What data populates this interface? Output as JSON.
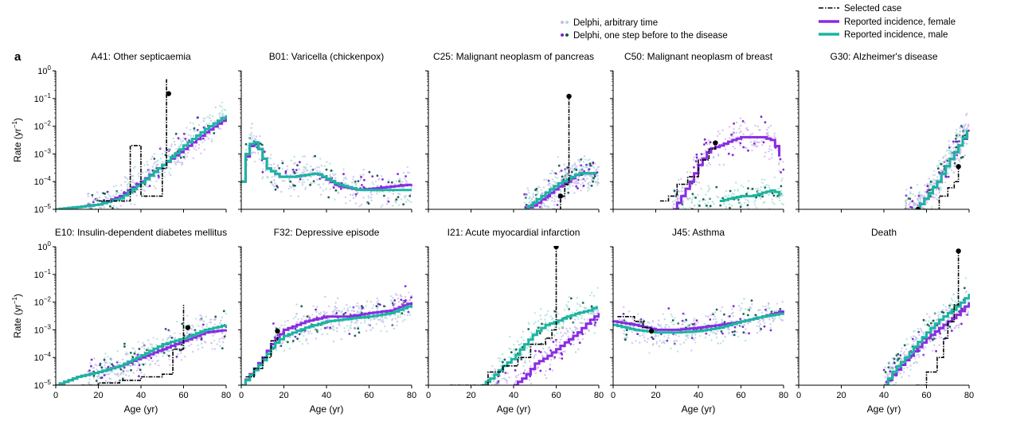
{
  "figure_label": "a",
  "legend": {
    "arbitrary": "Delphi, arbitrary time",
    "onestep": "Delphi, one step before to the disease",
    "selected": "Selected case",
    "female": "Reported incidence, female",
    "male": "Reported incidence, male"
  },
  "colors": {
    "female": "#8a2be2",
    "male": "#1ab5a0",
    "female_light": "#cdb6ee",
    "male_light": "#a8e0d8",
    "female_dark": "#7a1fd6",
    "male_dark": "#0e5c4a",
    "selected": "#000000"
  },
  "axis": {
    "xlabel": "Age (yr)",
    "ylabel_main": "Rate (yr",
    "ylabel_sup": "−1",
    "ylabel_close": ")",
    "x_ticks": [
      "0",
      "20",
      "40",
      "60",
      "80"
    ],
    "y_ticks": [
      {
        "base": "10",
        "exp": "0",
        "value": 1
      },
      {
        "base": "10",
        "exp": "−1",
        "value": 0.1
      },
      {
        "base": "10",
        "exp": "−2",
        "value": 0.01
      },
      {
        "base": "10",
        "exp": "−3",
        "value": 0.001
      },
      {
        "base": "10",
        "exp": "−4",
        "value": 0.0001
      },
      {
        "base": "10",
        "exp": "−5",
        "value": 1e-05
      }
    ]
  },
  "chart_data": [
    {
      "type": "line",
      "title": "A41: Other septicaemia",
      "xlim": [
        0,
        80
      ],
      "ylim": [
        1e-05,
        1
      ],
      "yscale": "log",
      "series": [
        {
          "name": "Reported incidence, female",
          "x": [
            0,
            10,
            20,
            30,
            40,
            50,
            60,
            70,
            80
          ],
          "y": [
            1e-05,
            1.2e-05,
            1.5e-05,
            3e-05,
            0.0001,
            0.0004,
            0.0015,
            0.006,
            0.02
          ]
        },
        {
          "name": "Reported incidence, male",
          "x": [
            0,
            10,
            20,
            30,
            40,
            50,
            60,
            70,
            80
          ],
          "y": [
            1e-05,
            1.2e-05,
            1.5e-05,
            2.5e-05,
            9e-05,
            0.0004,
            0.002,
            0.008,
            0.025
          ]
        },
        {
          "name": "Selected case",
          "x": [
            20,
            35,
            35,
            40,
            45,
            50,
            52,
            52
          ],
          "y": [
            2e-05,
            2e-05,
            0.002,
            3e-05,
            3e-05,
            0.0003,
            0.003,
            0.5
          ]
        }
      ],
      "selected_markers": [
        {
          "x": 53,
          "y": 0.15
        }
      ],
      "scatter": {
        "start_age": 15,
        "peak": 0.1
      }
    },
    {
      "type": "line",
      "title": "B01: Varicella (chickenpox)",
      "xlim": [
        0,
        80
      ],
      "ylim": [
        1e-05,
        1
      ],
      "yscale": "log",
      "series": [
        {
          "name": "Reported incidence, female",
          "x": [
            0,
            2,
            5,
            8,
            12,
            18,
            25,
            35,
            45,
            55,
            65,
            80
          ],
          "y": [
            0.0001,
            0.0008,
            0.003,
            0.0015,
            0.0003,
            0.00015,
            0.00015,
            0.0002,
            7e-05,
            5e-05,
            6e-05,
            8e-05
          ]
        },
        {
          "name": "Reported incidence, male",
          "x": [
            0,
            2,
            5,
            8,
            12,
            18,
            25,
            35,
            45,
            55,
            65,
            80
          ],
          "y": [
            0.0001,
            0.001,
            0.0035,
            0.0015,
            0.0003,
            0.00015,
            0.00015,
            0.0002,
            8e-05,
            5e-05,
            5e-05,
            5e-05
          ]
        }
      ],
      "selected_markers": [],
      "scatter": {
        "start_age": 2,
        "peak": 0.01
      }
    },
    {
      "type": "line",
      "title": "C25: Malignant neoplasm of pancreas",
      "xlim": [
        0,
        80
      ],
      "ylim": [
        1e-05,
        1
      ],
      "yscale": "log",
      "series": [
        {
          "name": "Reported incidence, female",
          "x": [
            45,
            50,
            55,
            60,
            65,
            70,
            75,
            80
          ],
          "y": [
            1e-05,
            1.5e-05,
            3e-05,
            6e-05,
            0.0001,
            0.0002,
            0.0002,
            0.0002
          ]
        },
        {
          "name": "Reported incidence, male",
          "x": [
            45,
            50,
            55,
            60,
            65,
            70,
            75,
            80
          ],
          "y": [
            1e-05,
            2e-05,
            4e-05,
            8e-05,
            0.00012,
            0.0002,
            0.0002,
            0.0002
          ]
        },
        {
          "name": "Selected case",
          "x": [
            58,
            62,
            64,
            66,
            66
          ],
          "y": [
            1e-05,
            3e-05,
            8e-05,
            0.0005,
            0.15
          ]
        }
      ],
      "selected_markers": [
        {
          "x": 66,
          "y": 0.12
        },
        {
          "x": 62,
          "y": 3e-05
        }
      ],
      "scatter": {
        "start_age": 45,
        "peak": 0.01
      }
    },
    {
      "type": "line",
      "title": "C50: Malignant neoplasm of breast",
      "xlim": [
        0,
        80
      ],
      "ylim": [
        1e-05,
        1
      ],
      "yscale": "log",
      "series": [
        {
          "name": "Reported incidence, female",
          "x": [
            28,
            32,
            36,
            40,
            45,
            50,
            55,
            60,
            65,
            70,
            75,
            78
          ],
          "y": [
            1e-05,
            3e-05,
            0.0001,
            0.0004,
            0.0015,
            0.002,
            0.003,
            0.004,
            0.004,
            0.004,
            0.003,
            0.0008
          ]
        },
        {
          "name": "Reported incidence, male",
          "x": [
            50,
            55,
            60,
            65,
            70,
            75,
            78
          ],
          "y": [
            2e-05,
            2.5e-05,
            3e-05,
            3e-05,
            4e-05,
            5e-05,
            3e-05
          ]
        },
        {
          "name": "Selected case",
          "x": [
            22,
            26,
            30,
            35,
            40,
            45,
            48
          ],
          "y": [
            2e-05,
            3e-05,
            8e-05,
            0.00015,
            0.0006,
            0.0015,
            0.0025
          ]
        }
      ],
      "selected_markers": [
        {
          "x": 48,
          "y": 0.0025
        }
      ],
      "scatter": {
        "start_age": 28,
        "peak": 0.1
      }
    },
    {
      "type": "line",
      "title": "G30: Alzheimer's disease",
      "xlim": [
        0,
        80
      ],
      "ylim": [
        1e-05,
        1
      ],
      "yscale": "log",
      "series": [
        {
          "name": "Reported incidence, female",
          "x": [
            55,
            60,
            65,
            70,
            75,
            80
          ],
          "y": [
            1e-05,
            3e-05,
            0.0001,
            0.0005,
            0.002,
            0.008
          ]
        },
        {
          "name": "Reported incidence, male",
          "x": [
            55,
            60,
            65,
            70,
            75,
            80
          ],
          "y": [
            1e-05,
            3e-05,
            0.0001,
            0.0005,
            0.002,
            0.01
          ]
        },
        {
          "name": "Selected case",
          "x": [
            58,
            63,
            66,
            70,
            73,
            75
          ],
          "y": [
            1e-05,
            1e-05,
            3e-05,
            6e-05,
            0.0001,
            0.0003
          ]
        }
      ],
      "selected_markers": [
        {
          "x": 75,
          "y": 0.00035
        },
        {
          "x": 56,
          "y": 1e-05
        }
      ],
      "scatter": {
        "start_age": 50,
        "peak": 0.1
      }
    },
    {
      "type": "line",
      "title": "E10: Insulin-dependent diabetes mellitus",
      "xlim": [
        0,
        80
      ],
      "ylim": [
        1e-05,
        1
      ],
      "yscale": "log",
      "series": [
        {
          "name": "Reported incidence, female",
          "x": [
            0,
            10,
            20,
            30,
            40,
            50,
            60,
            70,
            80
          ],
          "y": [
            1e-05,
            2e-05,
            3e-05,
            5e-05,
            0.0001,
            0.0002,
            0.0004,
            0.0008,
            0.001
          ]
        },
        {
          "name": "Reported incidence, male",
          "x": [
            0,
            10,
            20,
            30,
            40,
            50,
            60,
            70,
            80
          ],
          "y": [
            1e-05,
            2e-05,
            3e-05,
            5e-05,
            0.00012,
            0.0003,
            0.0005,
            0.001,
            0.0015
          ]
        },
        {
          "name": "Selected case",
          "x": [
            12,
            20,
            30,
            40,
            50,
            55,
            60,
            60
          ],
          "y": [
            1e-05,
            1.2e-05,
            1.5e-05,
            2e-05,
            2.5e-05,
            0.0002,
            0.0005,
            0.008
          ]
        }
      ],
      "selected_markers": [
        {
          "x": 62,
          "y": 0.0012
        }
      ],
      "scatter": {
        "start_age": 15,
        "peak": 0.1
      }
    },
    {
      "type": "line",
      "title": "F32: Depressive episode",
      "xlim": [
        0,
        80
      ],
      "ylim": [
        1e-05,
        1
      ],
      "yscale": "log",
      "series": [
        {
          "name": "Reported incidence, female",
          "x": [
            0,
            10,
            15,
            20,
            30,
            40,
            50,
            60,
            70,
            80
          ],
          "y": [
            1e-05,
            0.0001,
            0.0004,
            0.001,
            0.002,
            0.003,
            0.003,
            0.004,
            0.005,
            0.01
          ]
        },
        {
          "name": "Reported incidence, male",
          "x": [
            0,
            10,
            15,
            20,
            30,
            40,
            50,
            60,
            70,
            80
          ],
          "y": [
            1e-05,
            8e-05,
            0.0003,
            0.0006,
            0.0012,
            0.002,
            0.0025,
            0.003,
            0.004,
            0.008
          ]
        },
        {
          "name": "Selected case",
          "x": [
            2,
            6,
            10,
            14,
            17
          ],
          "y": [
            2e-05,
            4e-05,
            0.0001,
            0.0004,
            0.0009
          ]
        }
      ],
      "selected_markers": [
        {
          "x": 17,
          "y": 0.0009
        }
      ],
      "scatter": {
        "start_age": 15,
        "peak": 0.1
      }
    },
    {
      "type": "line",
      "title": "I21: Acute myocardial infarction",
      "xlim": [
        0,
        80
      ],
      "ylim": [
        1e-05,
        1
      ],
      "yscale": "log",
      "series": [
        {
          "name": "Reported incidence, female",
          "x": [
            40,
            45,
            50,
            55,
            60,
            65,
            70,
            75,
            80
          ],
          "y": [
            1e-05,
            2e-05,
            6e-05,
            0.0001,
            0.0002,
            0.0004,
            0.0008,
            0.002,
            0.004
          ]
        },
        {
          "name": "Reported incidence, male",
          "x": [
            25,
            30,
            35,
            40,
            45,
            50,
            55,
            60,
            65,
            70,
            75,
            80
          ],
          "y": [
            1e-05,
            2e-05,
            5e-05,
            0.0001,
            0.0003,
            0.0008,
            0.0015,
            0.002,
            0.003,
            0.004,
            0.005,
            0.008
          ]
        },
        {
          "name": "Selected case",
          "x": [
            10,
            20,
            28,
            35,
            42,
            48,
            55,
            58,
            60,
            60
          ],
          "y": [
            1e-05,
            1e-05,
            3e-05,
            5e-05,
            0.0001,
            0.0003,
            0.0005,
            0.001,
            0.002,
            1
          ]
        }
      ],
      "selected_markers": [
        {
          "x": 60,
          "y": 1
        }
      ],
      "scatter": {
        "start_age": 30,
        "peak": 0.1
      }
    },
    {
      "type": "line",
      "title": "J45: Asthma",
      "xlim": [
        0,
        80
      ],
      "ylim": [
        1e-05,
        1
      ],
      "yscale": "log",
      "series": [
        {
          "name": "Reported incidence, female",
          "x": [
            0,
            10,
            20,
            30,
            40,
            50,
            60,
            70,
            80
          ],
          "y": [
            0.002,
            0.0015,
            0.001,
            0.001,
            0.0012,
            0.0015,
            0.002,
            0.003,
            0.005
          ]
        },
        {
          "name": "Reported incidence, male",
          "x": [
            0,
            10,
            20,
            30,
            40,
            50,
            60,
            70,
            80
          ],
          "y": [
            0.0015,
            0.001,
            0.0008,
            0.0008,
            0.0009,
            0.0012,
            0.002,
            0.003,
            0.004
          ]
        },
        {
          "name": "Selected case",
          "x": [
            2,
            6,
            10,
            14,
            18
          ],
          "y": [
            0.003,
            0.003,
            0.002,
            0.0012,
            0.001
          ]
        }
      ],
      "selected_markers": [
        {
          "x": 18,
          "y": 0.0009
        }
      ],
      "scatter": {
        "start_age": 3,
        "peak": 0.1
      }
    },
    {
      "type": "line",
      "title": "Death",
      "xlim": [
        0,
        80
      ],
      "ylim": [
        1e-05,
        1
      ],
      "yscale": "log",
      "series": [
        {
          "name": "Reported incidence, female",
          "x": [
            40,
            45,
            50,
            55,
            60,
            65,
            70,
            75,
            80
          ],
          "y": [
            1e-05,
            3e-05,
            8e-05,
            0.0002,
            0.0005,
            0.001,
            0.002,
            0.004,
            0.01
          ]
        },
        {
          "name": "Reported incidence, male",
          "x": [
            40,
            45,
            50,
            55,
            60,
            65,
            70,
            75,
            80
          ],
          "y": [
            1e-05,
            4e-05,
            0.0001,
            0.0003,
            0.0008,
            0.002,
            0.004,
            0.008,
            0.02
          ]
        },
        {
          "name": "Selected case",
          "x": [
            55,
            60,
            65,
            68,
            70,
            73,
            75
          ],
          "y": [
            1e-05,
            3e-05,
            0.0001,
            0.0005,
            0.002,
            0.008,
            0.7
          ]
        }
      ],
      "selected_markers": [
        {
          "x": 75,
          "y": 0.7
        }
      ],
      "scatter": {
        "start_age": 40,
        "peak": 0.1
      }
    }
  ]
}
